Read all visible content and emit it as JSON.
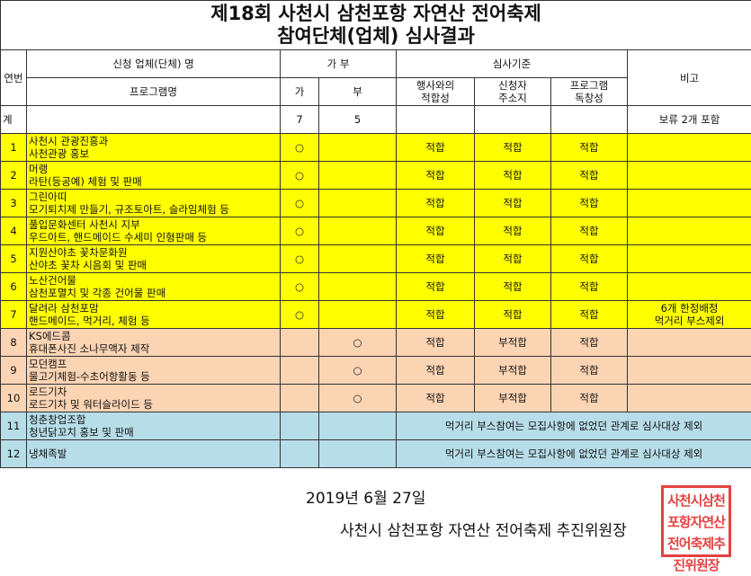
{
  "title": {
    "line1": "제18회 사천시 삼천포항 자연산 전어축제",
    "line2": "참여단체(업체) 심사결과"
  },
  "header": {
    "no": "연번",
    "applicant": "신청 업체(단체) 명",
    "approval": "가 부",
    "criteria": "심사기준",
    "remark": "비고",
    "program": "프로그램명",
    "yes": "가",
    "no_col": "부",
    "crit1": [
      "행사와의",
      "적합성"
    ],
    "crit2": [
      "신청자",
      "주소지"
    ],
    "crit3": [
      "프로그램",
      "독창성"
    ]
  },
  "total": {
    "label": "계",
    "yes": "7",
    "no": "5",
    "remark": "보류 2개 포함"
  },
  "rows": [
    {
      "no": "1",
      "org": "사천시 관광진흥과",
      "program": "사천관광 홍보",
      "yes": "○",
      "no_mark": "",
      "c1": "적합",
      "c2": "적합",
      "c3": "적합",
      "remark": "",
      "color": "y"
    },
    {
      "no": "2",
      "org": "머랭",
      "program": "라탄(등공예) 체험 및 판매",
      "yes": "○",
      "no_mark": "",
      "c1": "적합",
      "c2": "적합",
      "c3": "적합",
      "remark": "",
      "color": "y"
    },
    {
      "no": "3",
      "org": "그린아띠",
      "program": "모기퇴치제 만들기, 규조토아트, 슬라임체험 등",
      "yes": "○",
      "no_mark": "",
      "c1": "적합",
      "c2": "적합",
      "c3": "적합",
      "remark": "",
      "color": "y"
    },
    {
      "no": "4",
      "org": "풀입문화센터 사천시 지부",
      "program": "우드아트, 핸드메이드 수세미 인형판매 등",
      "yes": "○",
      "no_mark": "",
      "c1": "적합",
      "c2": "적합",
      "c3": "적합",
      "remark": "",
      "color": "y"
    },
    {
      "no": "5",
      "org": "지원산야초 꽃차문화원",
      "program": "산야초 꽃차 시음회 및 판매",
      "yes": "○",
      "no_mark": "",
      "c1": "적합",
      "c2": "적합",
      "c3": "적합",
      "remark": "",
      "color": "y"
    },
    {
      "no": "6",
      "org": "노산건어물",
      "program": "삼천포멸치 및 각종 건어물 판매",
      "yes": "○",
      "no_mark": "",
      "c1": "적합",
      "c2": "적합",
      "c3": "적합",
      "remark": "",
      "color": "y"
    },
    {
      "no": "7",
      "org": "달려라 삼천포맘",
      "program": "핸드메이드, 먹거리, 체험 등",
      "yes": "○",
      "no_mark": "",
      "c1": "적합",
      "c2": "적합",
      "c3": "적합",
      "remark": "6개 한정배정\n먹거리 부스제외",
      "color": "y"
    },
    {
      "no": "8",
      "org": "KS에드콤",
      "program": "휴대폰사진 소나무액자 제작",
      "yes": "",
      "no_mark": "○",
      "c1": "적합",
      "c2": "부적합",
      "c3": "적합",
      "remark": "",
      "color": "o"
    },
    {
      "no": "9",
      "org": "모던캠프",
      "program": "물고기체험-수초어항활동 등",
      "yes": "",
      "no_mark": "○",
      "c1": "적합",
      "c2": "부적합",
      "c3": "적합",
      "remark": "",
      "color": "o"
    },
    {
      "no": "10",
      "org": "로드기차",
      "program": "로드기차 및 워터슬라이드 등",
      "yes": "",
      "no_mark": "○",
      "c1": "적합",
      "c2": "부적합",
      "c3": "적합",
      "remark": "",
      "color": "o"
    },
    {
      "no": "11",
      "org": "청춘창업조합",
      "program": "청년닭꼬치 홍보 및 판매",
      "yes": "",
      "no_mark": "",
      "merged": "먹거리 부스참여는 모집사항에 없었던 관계로 심사대상 제외",
      "color": "b"
    },
    {
      "no": "12",
      "org": "냉채족발",
      "program": "",
      "yes": "",
      "no_mark": "",
      "merged": "먹거리 부스참여는 모집사항에 없었던 관계로 심사대상 제외",
      "color": "b"
    }
  ],
  "footer": {
    "date": "2019년 6월 27일",
    "signer": "사천시 삼천포항 자연산 전어축제 추진위원장"
  },
  "seal": {
    "text": "사천시삼천포항자연산전어축제추진위원장",
    "color": "#e02020"
  }
}
